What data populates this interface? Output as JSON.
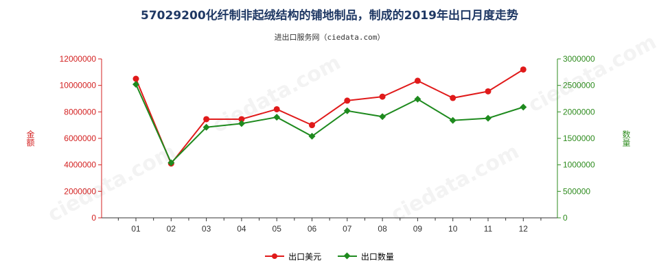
{
  "header": {
    "title": "57029200化纤制非起绒结构的铺地制品，制成的2019年出口月度走势",
    "subtitle": "进出口服务网（ciedata.com）"
  },
  "axes": {
    "left_label": "金额",
    "right_label": "数量"
  },
  "legend": {
    "series1": "出口美元",
    "series2": "出口数量"
  },
  "colors": {
    "series1": "#e01a1a",
    "series2": "#1e8a1e",
    "left_axis": "#d32020",
    "right_axis": "#2e8b1e",
    "title": "#1f3864"
  },
  "chart_data": {
    "type": "line",
    "categories": [
      "01",
      "02",
      "03",
      "04",
      "05",
      "06",
      "07",
      "08",
      "09",
      "10",
      "11",
      "12"
    ],
    "title": "57029200化纤制非起绒结构的铺地制品，制成的2019年出口月度走势",
    "subtitle": "进出口服务网（ciedata.com）",
    "ylabel": "金额",
    "y2label": "数量",
    "ylim": [
      0,
      12000000
    ],
    "y2lim": [
      0,
      3000000
    ],
    "yticks": [
      "0",
      "2000000",
      "4000000",
      "6000000",
      "8000000",
      "10000000",
      "12000000"
    ],
    "y2ticks": [
      "0",
      "500000",
      "1000000",
      "1500000",
      "2000000",
      "2500000",
      "3000000"
    ],
    "series": [
      {
        "name": "出口美元",
        "axis": "left",
        "color": "#e01a1a",
        "values": [
          10500000,
          4100000,
          7450000,
          7450000,
          8200000,
          7000000,
          8850000,
          9150000,
          10350000,
          9050000,
          9550000,
          11200000
        ]
      },
      {
        "name": "出口数量",
        "axis": "right",
        "color": "#1e8a1e",
        "values": [
          2520000,
          1040000,
          1710000,
          1780000,
          1900000,
          1540000,
          2020000,
          1910000,
          2240000,
          1840000,
          1880000,
          2090000
        ]
      }
    ],
    "grid": false,
    "legend_position": "bottom-center"
  }
}
